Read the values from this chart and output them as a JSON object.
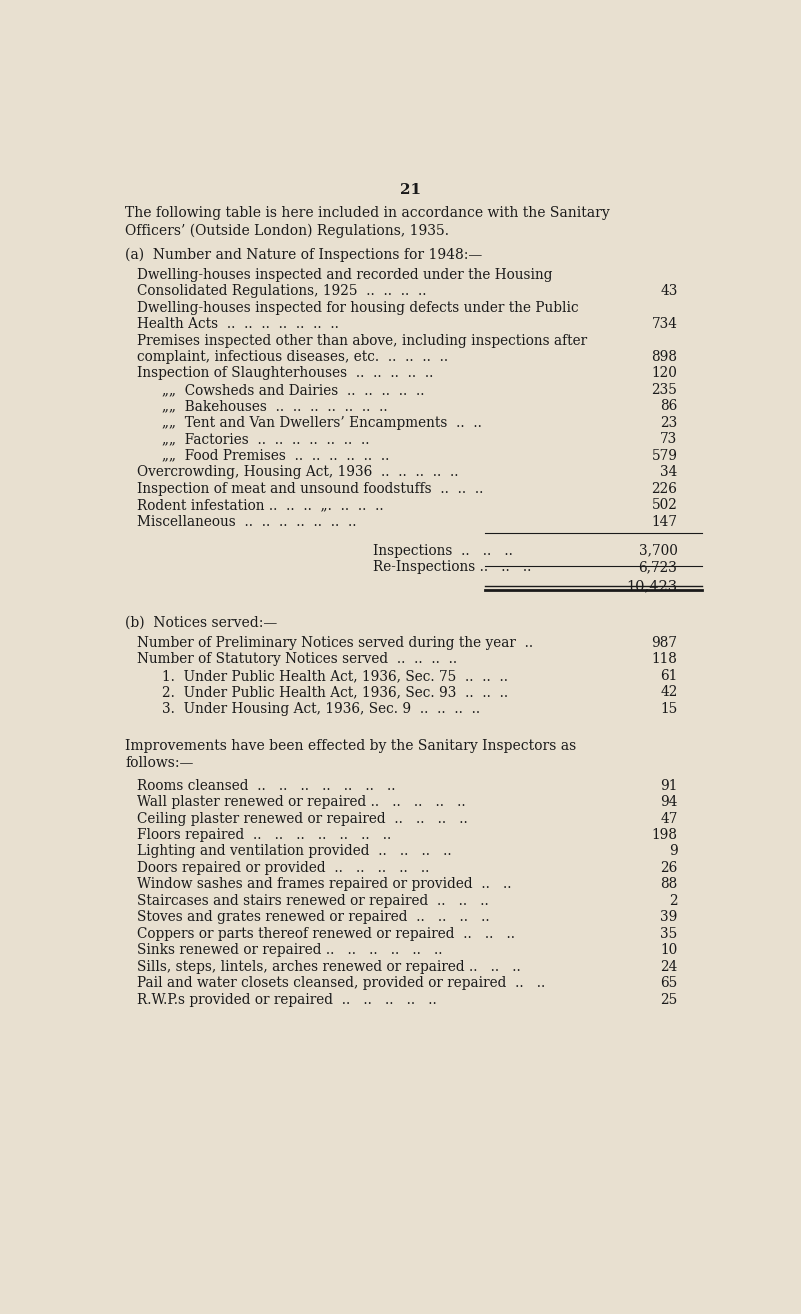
{
  "page_number": "21",
  "bg_color": "#e8e0d0",
  "text_color": "#1a1a1a",
  "intro_lines": [
    "The following table is here included in accordance with the Sanitary",
    "Officers’ (Outside London) Regulations, 1935."
  ],
  "section_a_header": "(a)  Number and Nature of Inspections for 1948:—",
  "section_b_header": "(b)  Notices served:—",
  "inspections_label": "Inspections  ..   ..   ..",
  "inspections_value": "3,700",
  "reinspections_label": "Re-Inspections ..   ..   ..",
  "reinspections_value": "6,723",
  "total_value": "10,423",
  "improvements_header_lines": [
    "Improvements have been effected by the Sanitary Inspectors as",
    "follows:—"
  ],
  "improvements_rows": [
    {
      "text": "Rooms cleansed  ..   ..   ..   ..   ..   ..   ..",
      "value": "91"
    },
    {
      "text": "Wall plaster renewed or repaired ..   ..   ..   ..   ..",
      "value": "94"
    },
    {
      "text": "Ceiling plaster renewed or repaired  ..   ..   ..   ..",
      "value": "47"
    },
    {
      "text": "Floors repaired  ..   ..   ..   ..   ..   ..   ..",
      "value": "198"
    },
    {
      "text": "Lighting and ventilation provided  ..   ..   ..   ..",
      "value": "9"
    },
    {
      "text": "Doors repaired or provided  ..   ..   ..   ..   ..",
      "value": "26"
    },
    {
      "text": "Window sashes and frames repaired or provided  ..   ..",
      "value": "88"
    },
    {
      "text": "Staircases and stairs renewed or repaired  ..   ..   ..",
      "value": "2"
    },
    {
      "text": "Stoves and grates renewed or repaired  ..   ..   ..   ..",
      "value": "39"
    },
    {
      "text": "Coppers or parts thereof renewed or repaired  ..   ..   ..",
      "value": "35"
    },
    {
      "text": "Sinks renewed or repaired ..   ..   ..   ..   ..   ..",
      "value": "10"
    },
    {
      "text": "Sills, steps, lintels, arches renewed or repaired ..   ..   ..",
      "value": "24"
    },
    {
      "text": "Pail and water closets cleansed, provided or repaired  ..   ..",
      "value": "65"
    },
    {
      "text": "R.W.P.s provided or repaired  ..   ..   ..   ..   ..",
      "value": "25"
    }
  ]
}
